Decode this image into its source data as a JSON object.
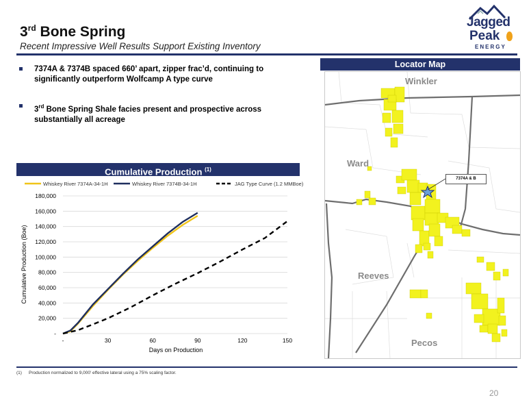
{
  "header": {
    "title_main": "3",
    "title_sup": "rd",
    "title_rest": " Bone Spring",
    "subtitle": "Recent Impressive Well Results Support Existing Inventory"
  },
  "logo": {
    "line1": "Jagged",
    "line2": "Peak",
    "line3": "ENERGY"
  },
  "bullets": [
    {
      "text": "7374A & 7374B spaced 660’ apart, zipper frac’d, continuing to significantly outperform Wolfcamp A type curve"
    },
    {
      "prefix": "3",
      "sup": "rd",
      "text": " Bone Spring Shale facies present and prospective across substantially all acreage"
    }
  ],
  "chart_panel": {
    "heading": "Cumulative Production",
    "heading_sup": "(1)"
  },
  "map_panel": {
    "heading": "Locator Map",
    "counties": [
      "Winkler",
      "Ward",
      "Reeves",
      "Pecos"
    ],
    "callout": "7374A & B"
  },
  "chart_data": {
    "type": "line",
    "xlabel": "Days on Production",
    "ylabel": "Cumulative Production (Boe)",
    "xlim": [
      0,
      150
    ],
    "ylim": [
      0,
      180000
    ],
    "x_ticks": [
      "-",
      "30",
      "60",
      "90",
      "120",
      "150"
    ],
    "y_ticks": [
      "-",
      "20,000",
      "40,000",
      "60,000",
      "80,000",
      "100,000",
      "120,000",
      "140,000",
      "160,000",
      "180,000"
    ],
    "grid": true,
    "legend": "top",
    "series": [
      {
        "name": "Whiskey River 7374A-34-1H",
        "color": "#f0c419",
        "x": [
          0,
          5,
          10,
          20,
          30,
          40,
          50,
          60,
          70,
          80,
          90
        ],
        "y": [
          0,
          3000,
          13000,
          36000,
          57000,
          77000,
          95000,
          112000,
          128000,
          142000,
          154000
        ]
      },
      {
        "name": "Whiskey River 7374B-34-1H",
        "color": "#1f2f5e",
        "x": [
          0,
          5,
          10,
          20,
          30,
          40,
          50,
          60,
          70,
          80,
          90
        ],
        "y": [
          0,
          4000,
          14000,
          38000,
          58000,
          78000,
          97000,
          114000,
          131000,
          146000,
          158000
        ]
      },
      {
        "name": "JAG Type Curve (1.2 MMBoe)",
        "color": "#000000",
        "dashed": true,
        "x": [
          0,
          10,
          20,
          30,
          45,
          60,
          75,
          90,
          105,
          120,
          135,
          150
        ],
        "y": [
          0,
          4500,
          12000,
          20000,
          34000,
          50000,
          65000,
          79000,
          94000,
          110000,
          125000,
          147000
        ]
      }
    ]
  },
  "footnote": {
    "num": "(1)",
    "text": "Production normalized to 9,000’ effective lateral using a 75% scaling factor."
  },
  "page_number": "20",
  "colors": {
    "navy": "#23326b",
    "acreage": "#f2f21f",
    "gold": "#f0c419"
  }
}
